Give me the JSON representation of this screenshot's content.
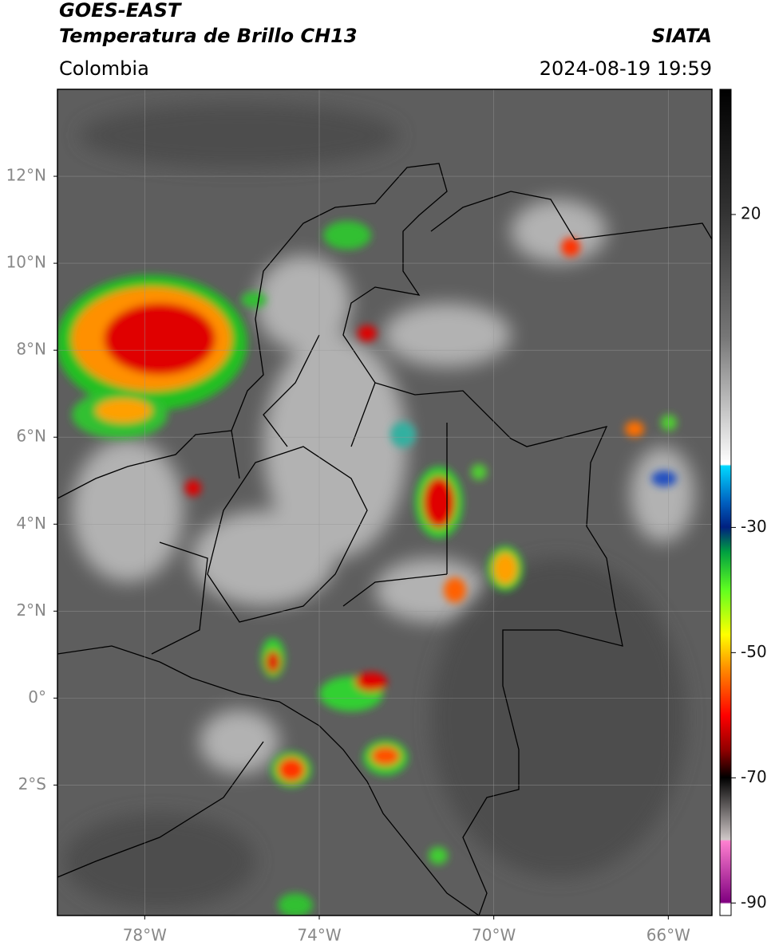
{
  "header": {
    "title": "GOES-EAST",
    "subtitle": "Temperatura de Brillo CH13",
    "region": "Colombia",
    "source": "SIATA",
    "datetime": "2024-08-19 19:59"
  },
  "map": {
    "xlim": [
      -80,
      -65
    ],
    "ylim": [
      -5,
      14
    ],
    "grid": true,
    "xticks": [
      {
        "value": -78,
        "label": "78°W"
      },
      {
        "value": -74,
        "label": "74°W"
      },
      {
        "value": -70,
        "label": "70°W"
      },
      {
        "value": -66,
        "label": "66°W"
      }
    ],
    "yticks": [
      {
        "value": 12,
        "label": "12°N"
      },
      {
        "value": 10,
        "label": "10°N"
      },
      {
        "value": 8,
        "label": "8°N"
      },
      {
        "value": 6,
        "label": "6°N"
      },
      {
        "value": 4,
        "label": "4°N"
      },
      {
        "value": 2,
        "label": "2°N"
      },
      {
        "value": 0,
        "label": "0°"
      },
      {
        "value": -2,
        "label": "2°S"
      }
    ]
  },
  "colorbar": {
    "lim": [
      -92,
      40
    ],
    "ticks": [
      20,
      -30,
      -50,
      -70,
      -90
    ]
  }
}
